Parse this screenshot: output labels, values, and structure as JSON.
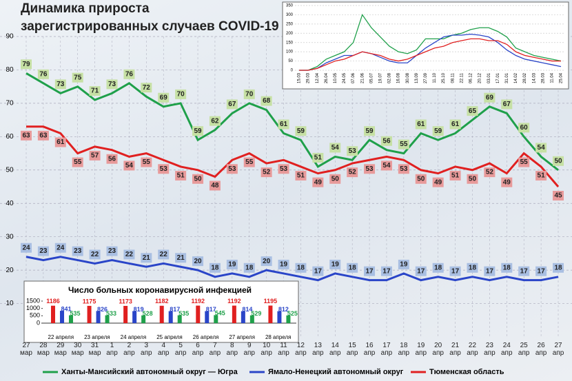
{
  "chart_data": [
    {
      "type": "line",
      "title": "Динамика прироста зарегистрированных случаев COVID-19",
      "categories": [
        "27 мар",
        "28 мар",
        "29 мар",
        "30 мар",
        "31 мар",
        "1 апр",
        "2 апр",
        "3 апр",
        "4 апр",
        "5 апр",
        "6 апр",
        "7 апр",
        "8 апр",
        "9 апр",
        "10 апр",
        "11 апр",
        "12 апр",
        "13 апр",
        "14 апр",
        "15 апр",
        "16 апр",
        "17 апр",
        "18 апр",
        "19 апр",
        "20 апр",
        "21 апр",
        "22 апр",
        "23 апр",
        "24 апр",
        "25 апр",
        "26 апр",
        "27 апр"
      ],
      "series": [
        {
          "name": "Ханты-Мансийский автономный округ — Югра",
          "color": "#1fa04a",
          "label_color": "#c6e0a4",
          "values": [
            79,
            76,
            73,
            75,
            71,
            73,
            76,
            72,
            69,
            70,
            59,
            62,
            67,
            70,
            68,
            61,
            59,
            51,
            54,
            53,
            59,
            56,
            55,
            61,
            59,
            61,
            65,
            69,
            67,
            60,
            54,
            50
          ]
        },
        {
          "name": "Ямало-Ненецкий автономный округ",
          "color": "#2a45c8",
          "label_color": "#a9bfe2",
          "values": [
            24,
            23,
            24,
            23,
            22,
            23,
            22,
            21,
            22,
            21,
            20,
            18,
            19,
            18,
            20,
            19,
            18,
            17,
            19,
            18,
            17,
            17,
            19,
            17,
            18,
            17,
            18,
            17,
            18,
            17,
            17,
            18
          ]
        },
        {
          "name": "Тюменская область",
          "color": "#e02020",
          "label_color": "#e89a9a",
          "values": [
            63,
            63,
            61,
            55,
            57,
            56,
            54,
            55,
            53,
            51,
            50,
            48,
            53,
            55,
            52,
            53,
            51,
            49,
            50,
            52,
            53,
            54,
            53,
            50,
            49,
            51,
            50,
            52,
            49,
            55,
            51,
            45
          ]
        }
      ],
      "ylim": [
        0,
        90
      ],
      "yticks": [
        10,
        20,
        30,
        40,
        50,
        60,
        70,
        80,
        90
      ],
      "grid": true
    },
    {
      "type": "line",
      "categories": [
        "15.03",
        "29.03",
        "12.04",
        "26.04",
        "10.05",
        "24.05",
        "07.06",
        "21.06",
        "05.07",
        "19.07",
        "02.08",
        "16.08",
        "30.08",
        "13.09",
        "27.09",
        "11.10",
        "25.10",
        "08.11",
        "22.11",
        "06.12",
        "20.12",
        "03.01",
        "17.01",
        "31.01",
        "14.02",
        "28.02",
        "14.03",
        "28.03",
        "11.04",
        "25.04"
      ],
      "series": [
        {
          "name": "Ханты-Мансийский автономный округ — Югра",
          "color": "#1fa04a",
          "values": [
            0,
            0,
            20,
            60,
            80,
            100,
            150,
            300,
            230,
            180,
            130,
            100,
            90,
            110,
            170,
            170,
            170,
            190,
            200,
            220,
            230,
            230,
            210,
            180,
            120,
            100,
            80,
            70,
            60,
            50
          ]
        },
        {
          "name": "Ямало-Ненецкий автономный округ",
          "color": "#2a45c8",
          "values": [
            0,
            0,
            10,
            40,
            60,
            80,
            80,
            100,
            90,
            70,
            50,
            40,
            40,
            80,
            120,
            150,
            180,
            190,
            190,
            195,
            190,
            180,
            150,
            110,
            80,
            60,
            50,
            40,
            30,
            20
          ]
        },
        {
          "name": "Тюменская область",
          "color": "#e02020",
          "values": [
            0,
            0,
            10,
            30,
            50,
            60,
            80,
            100,
            90,
            80,
            60,
            50,
            60,
            80,
            100,
            120,
            130,
            150,
            160,
            170,
            170,
            160,
            160,
            140,
            100,
            80,
            70,
            60,
            50,
            50
          ]
        }
      ],
      "ylim": [
        0,
        350
      ],
      "yticks": [
        0,
        50,
        100,
        150,
        200,
        250,
        300,
        350
      ],
      "grid": true
    },
    {
      "type": "bar",
      "title": "Число больных коронавирусной инфекцией",
      "categories": [
        "22 апреля",
        "23 апреля",
        "24 апреля",
        "25 апреля",
        "26 апреля",
        "27 апреля",
        "28 апреля"
      ],
      "series": [
        {
          "name": "Тюменская область",
          "color": "#e02020",
          "values": [
            1186,
            1175,
            1173,
            1182,
            1192,
            1192,
            1195
          ]
        },
        {
          "name": "Ямало-Ненецкий автономный округ",
          "color": "#2a45c8",
          "values": [
            841,
            826,
            819,
            817,
            817,
            814,
            812
          ]
        },
        {
          "name": "Ханты-Мансийский автономный округ — Югра",
          "color": "#1fa04a",
          "values": [
            535,
            533,
            528,
            535,
            545,
            529,
            525
          ]
        }
      ],
      "ylim": [
        0,
        1500
      ],
      "yticks": [
        0,
        500,
        1000,
        1500
      ]
    }
  ]
}
